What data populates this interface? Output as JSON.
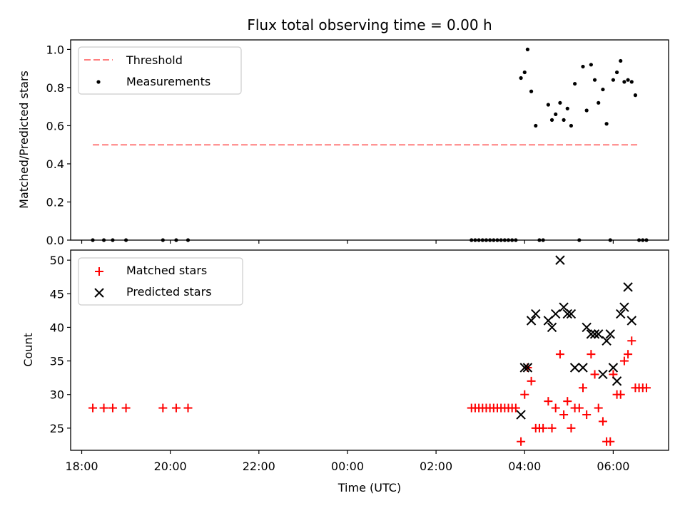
{
  "chart_data": [
    {
      "type": "scatter",
      "title": "Flux total observing time = 0.00 h",
      "xlabel": "",
      "ylabel": "Matched/Predicted stars",
      "xlim": [
        "17:45",
        "07:15"
      ],
      "ylim": [
        0,
        1.05
      ],
      "yticks": [
        "0.0",
        "0.2",
        "0.4",
        "0.6",
        "0.8",
        "1.0"
      ],
      "legend_position": "top-left",
      "threshold": {
        "name": "Threshold",
        "value": 0.5,
        "x_start": "18:15",
        "x_end": "06:35",
        "color": "#ff7f7f"
      },
      "series": [
        {
          "name": "Measurements",
          "color": "#000000",
          "points": [
            [
              "18:15",
              0
            ],
            [
              "18:30",
              0
            ],
            [
              "18:42",
              0
            ],
            [
              "19:00",
              0
            ],
            [
              "19:50",
              0
            ],
            [
              "20:08",
              0
            ],
            [
              "20:24",
              0
            ],
            [
              "02:48",
              0
            ],
            [
              "02:53",
              0
            ],
            [
              "02:58",
              0
            ],
            [
              "03:03",
              0
            ],
            [
              "03:08",
              0
            ],
            [
              "03:13",
              0
            ],
            [
              "03:18",
              0
            ],
            [
              "03:23",
              0
            ],
            [
              "03:28",
              0
            ],
            [
              "03:33",
              0
            ],
            [
              "03:38",
              0
            ],
            [
              "03:43",
              0
            ],
            [
              "03:48",
              0
            ],
            [
              "03:55",
              0.85
            ],
            [
              "04:00",
              0.88
            ],
            [
              "04:04",
              1.0
            ],
            [
              "04:09",
              0.78
            ],
            [
              "04:15",
              0.6
            ],
            [
              "04:20",
              0
            ],
            [
              "04:25",
              0
            ],
            [
              "04:32",
              0.71
            ],
            [
              "04:37",
              0.63
            ],
            [
              "04:42",
              0.66
            ],
            [
              "04:48",
              0.72
            ],
            [
              "04:53",
              0.63
            ],
            [
              "04:58",
              0.69
            ],
            [
              "05:03",
              0.6
            ],
            [
              "05:08",
              0.82
            ],
            [
              "05:14",
              0
            ],
            [
              "05:19",
              0.91
            ],
            [
              "05:24",
              0.68
            ],
            [
              "05:30",
              0.92
            ],
            [
              "05:35",
              0.84
            ],
            [
              "05:40",
              0.72
            ],
            [
              "05:46",
              0.79
            ],
            [
              "05:51",
              0.61
            ],
            [
              "05:56",
              0
            ],
            [
              "06:00",
              0.84
            ],
            [
              "06:05",
              0.88
            ],
            [
              "06:10",
              0.94
            ],
            [
              "06:15",
              0.83
            ],
            [
              "06:20",
              0.84
            ],
            [
              "06:25",
              0.83
            ],
            [
              "06:30",
              0.76
            ],
            [
              "06:35",
              0
            ],
            [
              "06:40",
              0
            ],
            [
              "06:45",
              0
            ]
          ]
        }
      ]
    },
    {
      "type": "scatter",
      "title": "",
      "xlabel": "Time (UTC)",
      "ylabel": "Count",
      "xlim": [
        "17:45",
        "07:15"
      ],
      "ylim": [
        21.7,
        51.5
      ],
      "yticks": [
        "25",
        "30",
        "35",
        "40",
        "45",
        "50"
      ],
      "xticks": [
        "18:00",
        "20:00",
        "22:00",
        "00:00",
        "02:00",
        "04:00",
        "06:00"
      ],
      "legend_position": "top-left",
      "series": [
        {
          "name": "Matched stars",
          "marker": "plus",
          "color": "#ff0000",
          "points": [
            [
              "18:15",
              28
            ],
            [
              "18:30",
              28
            ],
            [
              "18:42",
              28
            ],
            [
              "19:00",
              28
            ],
            [
              "19:50",
              28
            ],
            [
              "20:08",
              28
            ],
            [
              "20:24",
              28
            ],
            [
              "02:48",
              28
            ],
            [
              "02:53",
              28
            ],
            [
              "02:58",
              28
            ],
            [
              "03:03",
              28
            ],
            [
              "03:08",
              28
            ],
            [
              "03:13",
              28
            ],
            [
              "03:18",
              28
            ],
            [
              "03:23",
              28
            ],
            [
              "03:28",
              28
            ],
            [
              "03:33",
              28
            ],
            [
              "03:38",
              28
            ],
            [
              "03:43",
              28
            ],
            [
              "03:48",
              28
            ],
            [
              "03:55",
              23
            ],
            [
              "04:00",
              30
            ],
            [
              "04:04",
              34
            ],
            [
              "04:09",
              32
            ],
            [
              "04:15",
              25
            ],
            [
              "04:20",
              25
            ],
            [
              "04:25",
              25
            ],
            [
              "04:32",
              29
            ],
            [
              "04:37",
              25
            ],
            [
              "04:42",
              28
            ],
            [
              "04:48",
              36
            ],
            [
              "04:53",
              27
            ],
            [
              "04:58",
              29
            ],
            [
              "05:03",
              25
            ],
            [
              "05:08",
              28
            ],
            [
              "05:14",
              28
            ],
            [
              "05:19",
              31
            ],
            [
              "05:24",
              27
            ],
            [
              "05:30",
              36
            ],
            [
              "05:35",
              33
            ],
            [
              "05:40",
              28
            ],
            [
              "05:46",
              26
            ],
            [
              "05:51",
              23
            ],
            [
              "05:56",
              23
            ],
            [
              "06:00",
              33
            ],
            [
              "06:05",
              30
            ],
            [
              "06:10",
              30
            ],
            [
              "06:15",
              35
            ],
            [
              "06:20",
              36
            ],
            [
              "06:25",
              38
            ],
            [
              "06:30",
              31
            ],
            [
              "06:35",
              31
            ],
            [
              "06:40",
              31
            ],
            [
              "06:45",
              31
            ]
          ]
        },
        {
          "name": "Predicted stars",
          "marker": "x",
          "color": "#000000",
          "points": [
            [
              "03:55",
              27
            ],
            [
              "04:00",
              34
            ],
            [
              "04:04",
              34
            ],
            [
              "04:09",
              41
            ],
            [
              "04:15",
              42
            ],
            [
              "04:32",
              41
            ],
            [
              "04:37",
              40
            ],
            [
              "04:42",
              42
            ],
            [
              "04:48",
              50
            ],
            [
              "04:53",
              43
            ],
            [
              "04:58",
              42
            ],
            [
              "05:03",
              42
            ],
            [
              "05:08",
              34
            ],
            [
              "05:19",
              34
            ],
            [
              "05:24",
              40
            ],
            [
              "05:30",
              39
            ],
            [
              "05:35",
              39
            ],
            [
              "05:40",
              39
            ],
            [
              "05:46",
              33
            ],
            [
              "05:51",
              38
            ],
            [
              "05:56",
              39
            ],
            [
              "06:00",
              34
            ],
            [
              "06:05",
              32
            ],
            [
              "06:10",
              42
            ],
            [
              "06:15",
              43
            ],
            [
              "06:20",
              46
            ],
            [
              "06:25",
              41
            ]
          ]
        }
      ]
    }
  ]
}
